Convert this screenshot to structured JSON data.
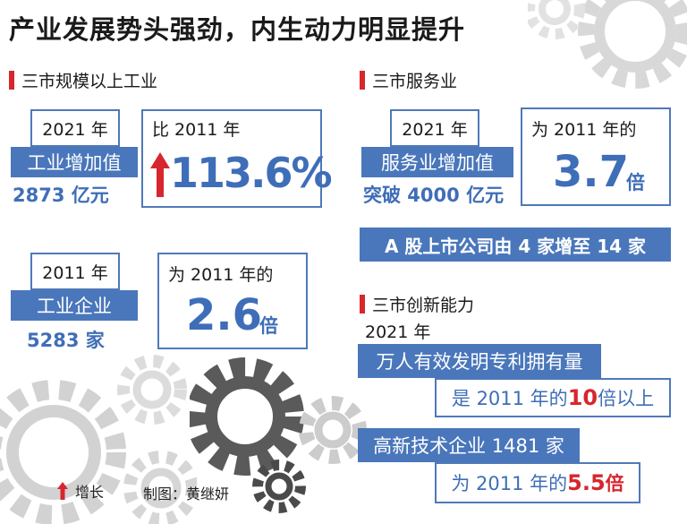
{
  "title": "产业发展势头强劲，内生动力明显提升",
  "industry": {
    "heading": "三市规模以上工业",
    "value_added": {
      "year": "2021 年",
      "label": "工业增加值",
      "amount": "2873 亿元"
    },
    "growth": {
      "prefix": "比 2011 年",
      "value": "113.6%"
    },
    "enterprises": {
      "year": "2011 年",
      "label": "工业企业",
      "amount": "5283 家"
    },
    "multiple": {
      "prefix": "为 2011 年的",
      "value": "2.6",
      "unit": "倍"
    }
  },
  "services": {
    "heading": "三市服务业",
    "value_added": {
      "year": "2021 年",
      "label": "服务业增加值",
      "amount": "突破 4000 亿元"
    },
    "multiple": {
      "prefix": "为 2011 年的",
      "value": "3.7",
      "unit": "倍"
    },
    "listed": "A 股上市公司由 4 家增至 14 家"
  },
  "innovation": {
    "heading": "三市创新能力",
    "year": "2021 年",
    "patents": {
      "label": "万人有效发明专利拥有量",
      "prefix": "是 2011 年的 ",
      "value": "10",
      "suffix": "倍以上"
    },
    "hightech": {
      "label": "高新技术企业 1481 家",
      "prefix": "为 2011 年的 ",
      "value": "5.5",
      "suffix": " 倍"
    }
  },
  "legend": {
    "growth": "增长"
  },
  "credit": "制图：黄继妍",
  "colors": {
    "accent_blue": "#4a77bb",
    "accent_red": "#d7262d",
    "gear_gray": "#cfcfcf",
    "gear_dark": "#555555"
  }
}
